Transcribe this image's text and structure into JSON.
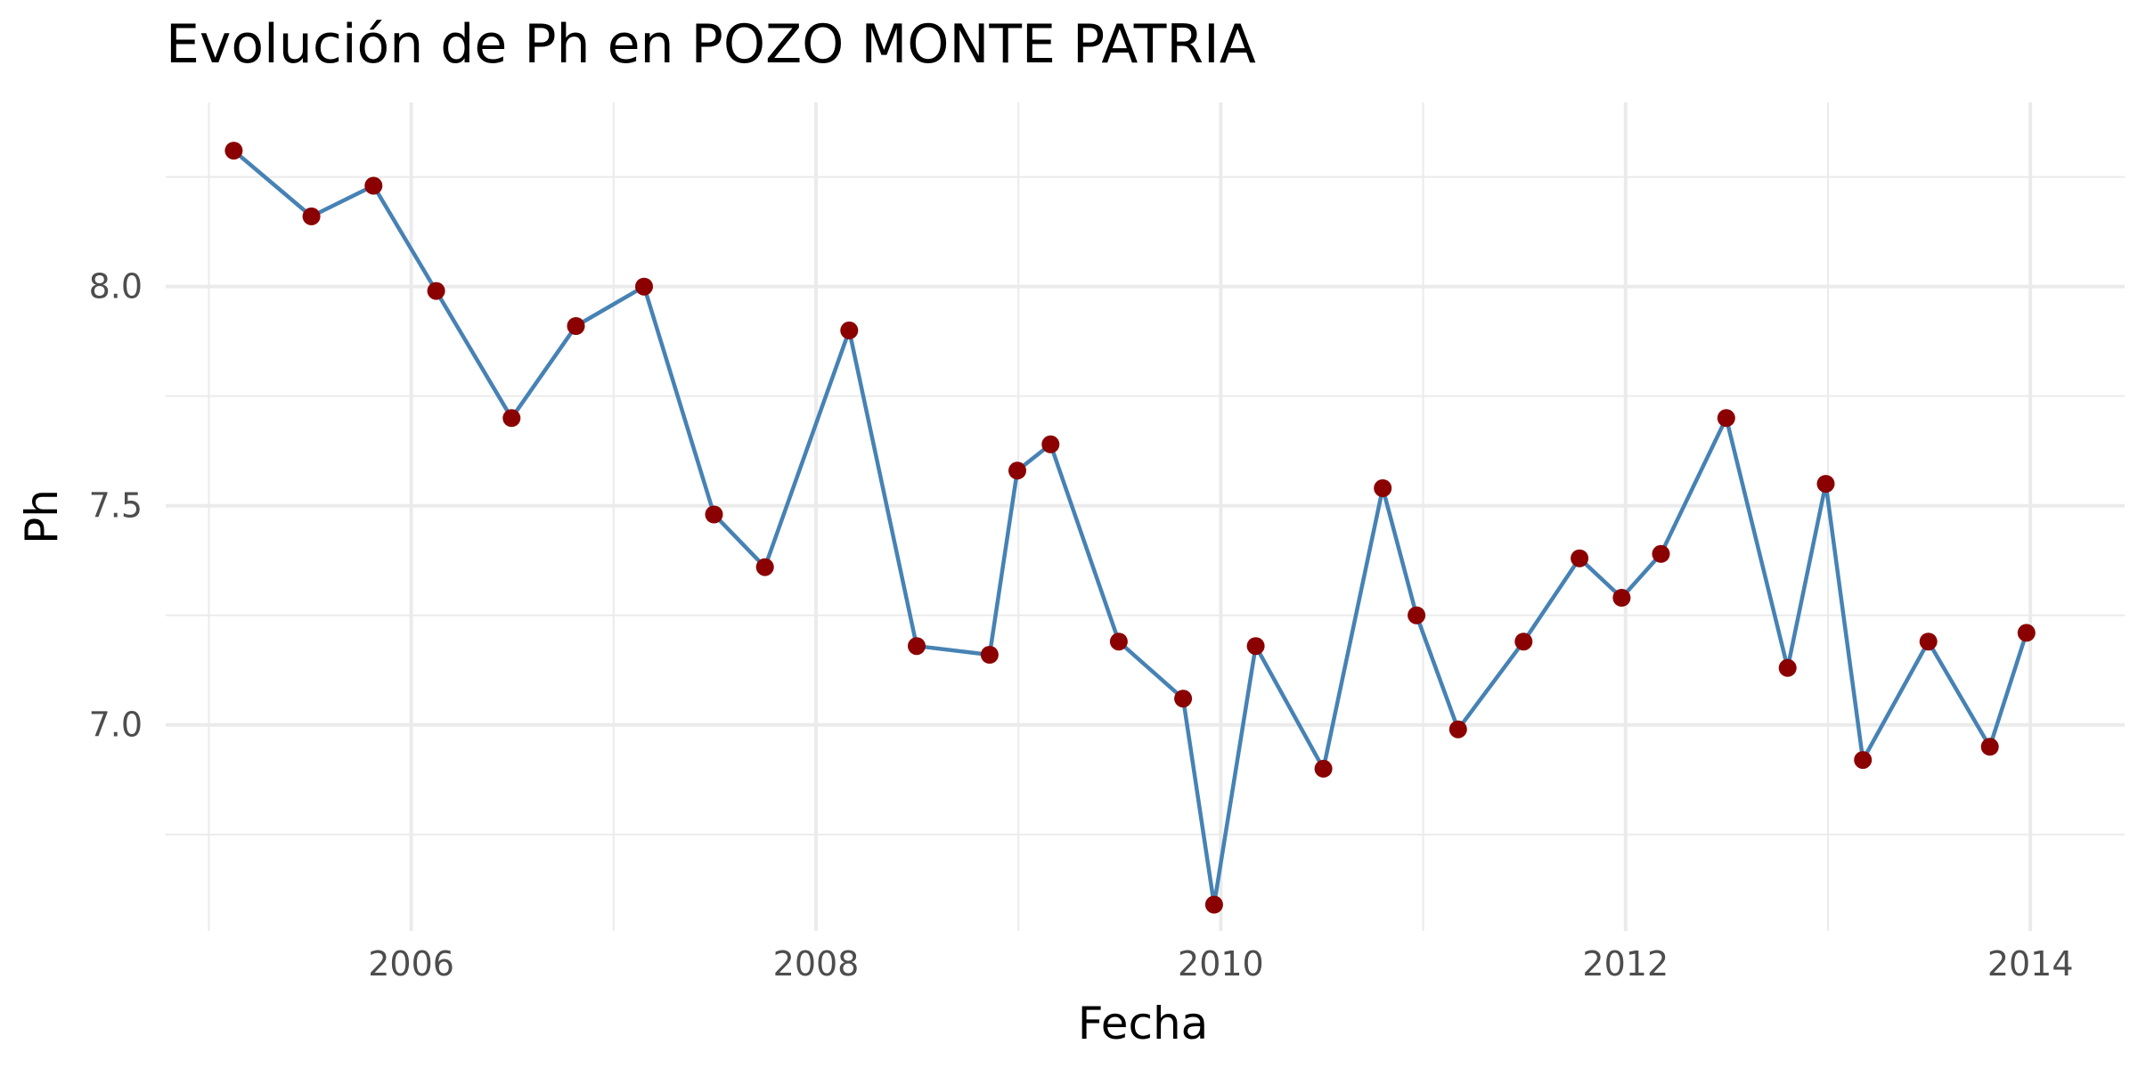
{
  "chart_data": {
    "type": "line",
    "title": "Evolución de Ph en POZO MONTE PATRIA",
    "xlabel": "Fecha",
    "ylabel": "Ph",
    "x_ticks": [
      2006,
      2008,
      2010,
      2012,
      2014
    ],
    "y_ticks": [
      7.0,
      7.5,
      8.0
    ],
    "y_tick_labels": [
      "7.0",
      "7.5",
      "8.0"
    ],
    "xlim": [
      "2004-10-15",
      "2014-06-20"
    ],
    "ylim": [
      6.53,
      8.42
    ],
    "grid": true,
    "legend": "none",
    "line_color": "#4682B4",
    "point_color": "#8B0000",
    "series": [
      {
        "points": [
          {
            "x": "2005-02-15",
            "y": 8.31
          },
          {
            "x": "2005-07-05",
            "y": 8.16
          },
          {
            "x": "2005-10-25",
            "y": 8.23
          },
          {
            "x": "2006-02-15",
            "y": 7.99
          },
          {
            "x": "2006-07-01",
            "y": 7.7
          },
          {
            "x": "2006-10-25",
            "y": 7.91
          },
          {
            "x": "2007-02-25",
            "y": 8.0
          },
          {
            "x": "2007-07-01",
            "y": 7.48
          },
          {
            "x": "2007-10-01",
            "y": 7.36
          },
          {
            "x": "2008-03-01",
            "y": 7.9
          },
          {
            "x": "2008-07-01",
            "y": 7.18
          },
          {
            "x": "2008-11-10",
            "y": 7.16
          },
          {
            "x": "2008-12-30",
            "y": 7.58
          },
          {
            "x": "2009-02-28",
            "y": 7.64
          },
          {
            "x": "2009-07-01",
            "y": 7.19
          },
          {
            "x": "2009-10-25",
            "y": 7.06
          },
          {
            "x": "2009-12-20",
            "y": 6.59
          },
          {
            "x": "2010-03-05",
            "y": 7.18
          },
          {
            "x": "2010-07-05",
            "y": 6.9
          },
          {
            "x": "2010-10-20",
            "y": 7.54
          },
          {
            "x": "2010-12-20",
            "y": 7.25
          },
          {
            "x": "2011-03-05",
            "y": 6.99
          },
          {
            "x": "2011-07-01",
            "y": 7.19
          },
          {
            "x": "2011-10-10",
            "y": 7.38
          },
          {
            "x": "2011-12-25",
            "y": 7.29
          },
          {
            "x": "2012-03-05",
            "y": 7.39
          },
          {
            "x": "2012-07-01",
            "y": 7.7
          },
          {
            "x": "2012-10-20",
            "y": 7.13
          },
          {
            "x": "2012-12-28",
            "y": 7.55
          },
          {
            "x": "2013-03-05",
            "y": 6.92
          },
          {
            "x": "2013-07-01",
            "y": 7.19
          },
          {
            "x": "2013-10-20",
            "y": 6.95
          },
          {
            "x": "2013-12-25",
            "y": 7.21
          }
        ]
      }
    ]
  }
}
